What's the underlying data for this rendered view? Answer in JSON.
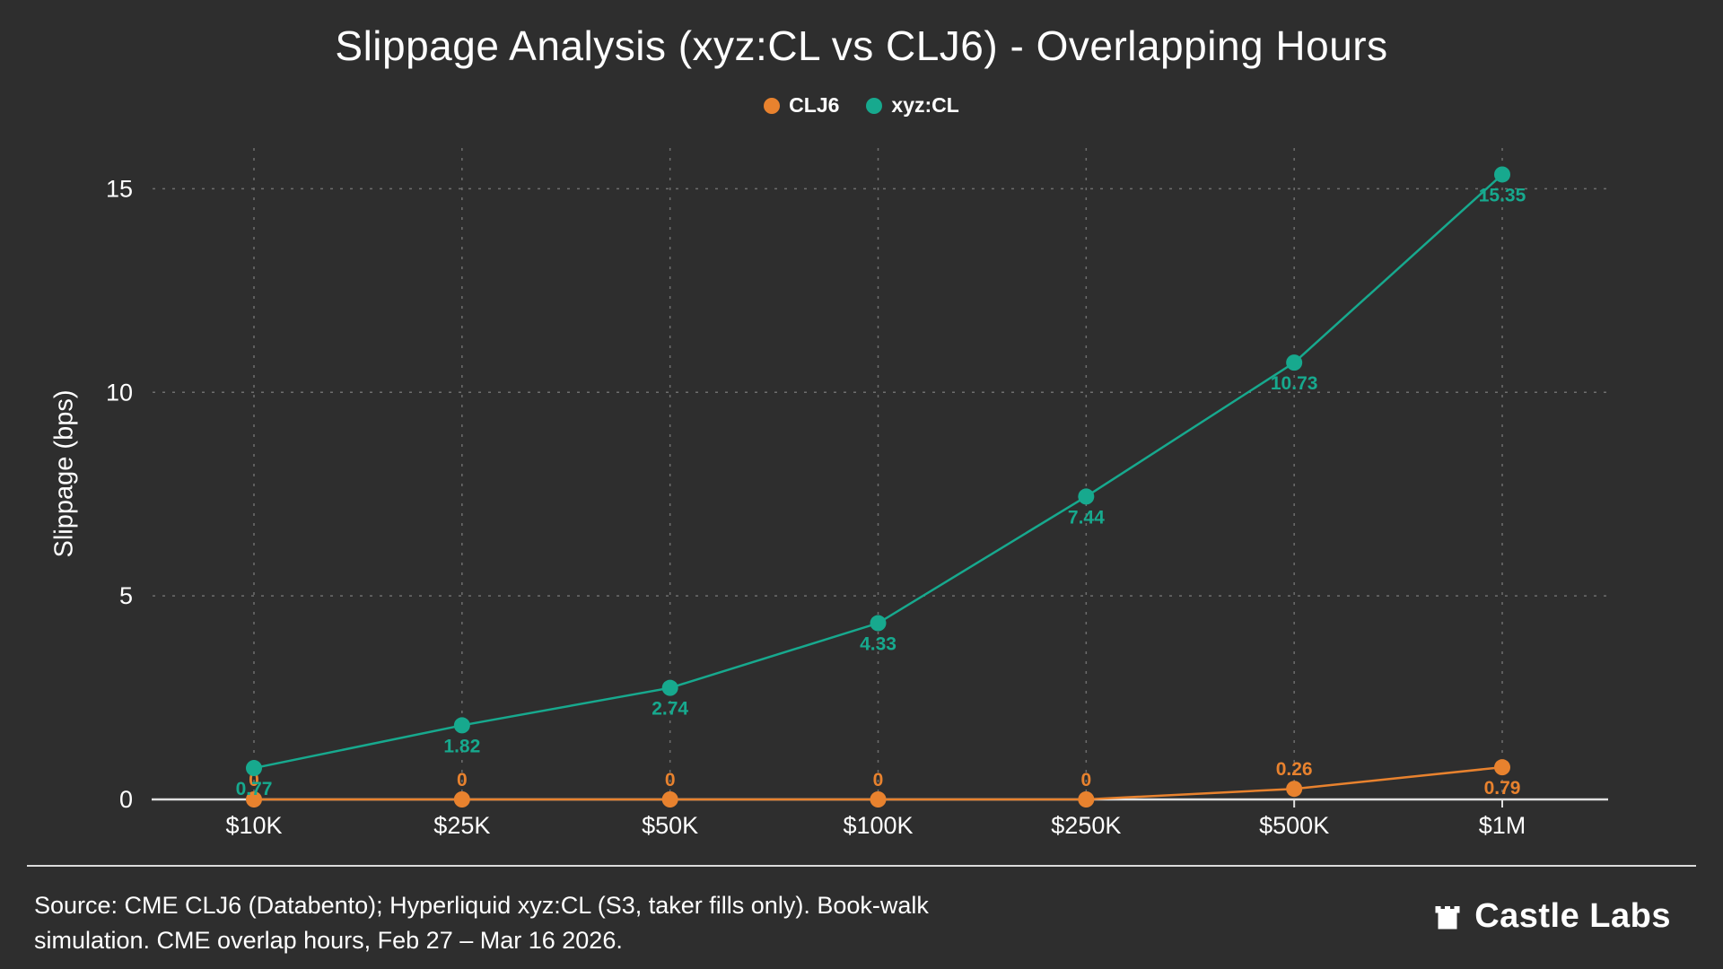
{
  "theme": {
    "background": "#2e2e2e",
    "text": "#ffffff",
    "grid": "#6e6e6e",
    "axis": "#e0e0e0",
    "orange": "#e8822e",
    "teal": "#17a98e"
  },
  "title": "Slippage Analysis (xyz:CL vs CLJ6) - Overlapping Hours",
  "legend": [
    {
      "label": "CLJ6",
      "color": "#e8822e"
    },
    {
      "label": "xyz:CL",
      "color": "#17a98e"
    }
  ],
  "chart_data": {
    "type": "line",
    "categories": [
      "$10K",
      "$25K",
      "$50K",
      "$100K",
      "$250K",
      "$500K",
      "$1M"
    ],
    "series": [
      {
        "name": "CLJ6",
        "color": "#e8822e",
        "values": [
          0,
          0,
          0,
          0,
          0,
          0.26,
          0.79
        ]
      },
      {
        "name": "xyz:CL",
        "color": "#17a98e",
        "values": [
          0.77,
          1.82,
          2.74,
          4.33,
          7.44,
          10.73,
          15.35
        ]
      }
    ],
    "title": "Slippage Analysis (xyz:CL vs CLJ6) - Overlapping Hours",
    "xlabel": "",
    "ylabel": "Slippage (bps)",
    "yticks": [
      0,
      5,
      10,
      15
    ],
    "ylim": [
      0,
      16
    ],
    "grid": true,
    "legend_position": "top"
  },
  "footer": {
    "source_line1": "Source: CME CLJ6 (Databento); Hyperliquid xyz:CL (S3, taker fills only). Book-walk",
    "source_line2": "simulation. CME overlap hours, Feb 27 – Mar 16 2026.",
    "brand": "Castle Labs"
  }
}
